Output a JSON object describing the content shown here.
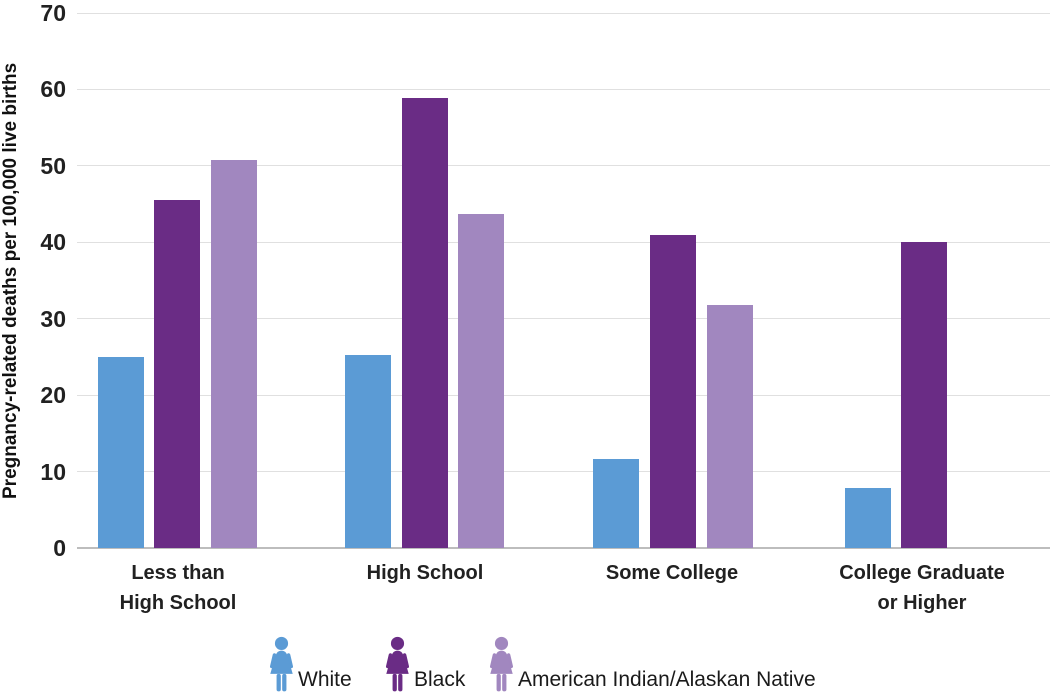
{
  "chart_data": {
    "type": "bar",
    "title": "",
    "ylabel": "Pregnancy-related deaths per 100,000 live births",
    "xlabel": "",
    "ylim": [
      0,
      70
    ],
    "yticks": [
      0,
      10,
      20,
      30,
      40,
      50,
      60,
      70
    ],
    "grid": "horizontal",
    "legend_position": "bottom",
    "categories": [
      "Less than High School",
      "High School",
      "Some College",
      "College Graduate or Higher"
    ],
    "category_lines": [
      [
        "Less than",
        "High School"
      ],
      [
        "High School"
      ],
      [
        "Some College"
      ],
      [
        "College Graduate",
        "or Higher"
      ]
    ],
    "series": [
      {
        "name": "White",
        "color": "#5B9BD5",
        "values": [
          25.0,
          25.2,
          11.6,
          7.9
        ]
      },
      {
        "name": "Black",
        "color": "#6A2C85",
        "values": [
          45.5,
          58.9,
          41.0,
          40.0
        ]
      },
      {
        "name": "American Indian/Alaskan Native",
        "color": "#A187BF",
        "values": [
          50.8,
          43.7,
          31.8,
          null
        ]
      }
    ]
  },
  "legend": {
    "icon": "woman-icon",
    "items": [
      {
        "label": "White",
        "color": "#5B9BD5"
      },
      {
        "label": "Black",
        "color": "#6A2C85"
      },
      {
        "label": "American Indian/Alaskan Native",
        "color": "#A187BF"
      }
    ]
  },
  "colors": {
    "gridline": "#E0E0E0",
    "baseline": "#BDBDBD",
    "tick_text": "#212121",
    "category_text": "#212121",
    "legend_text": "#1a1a1a",
    "background": "#ffffff"
  }
}
